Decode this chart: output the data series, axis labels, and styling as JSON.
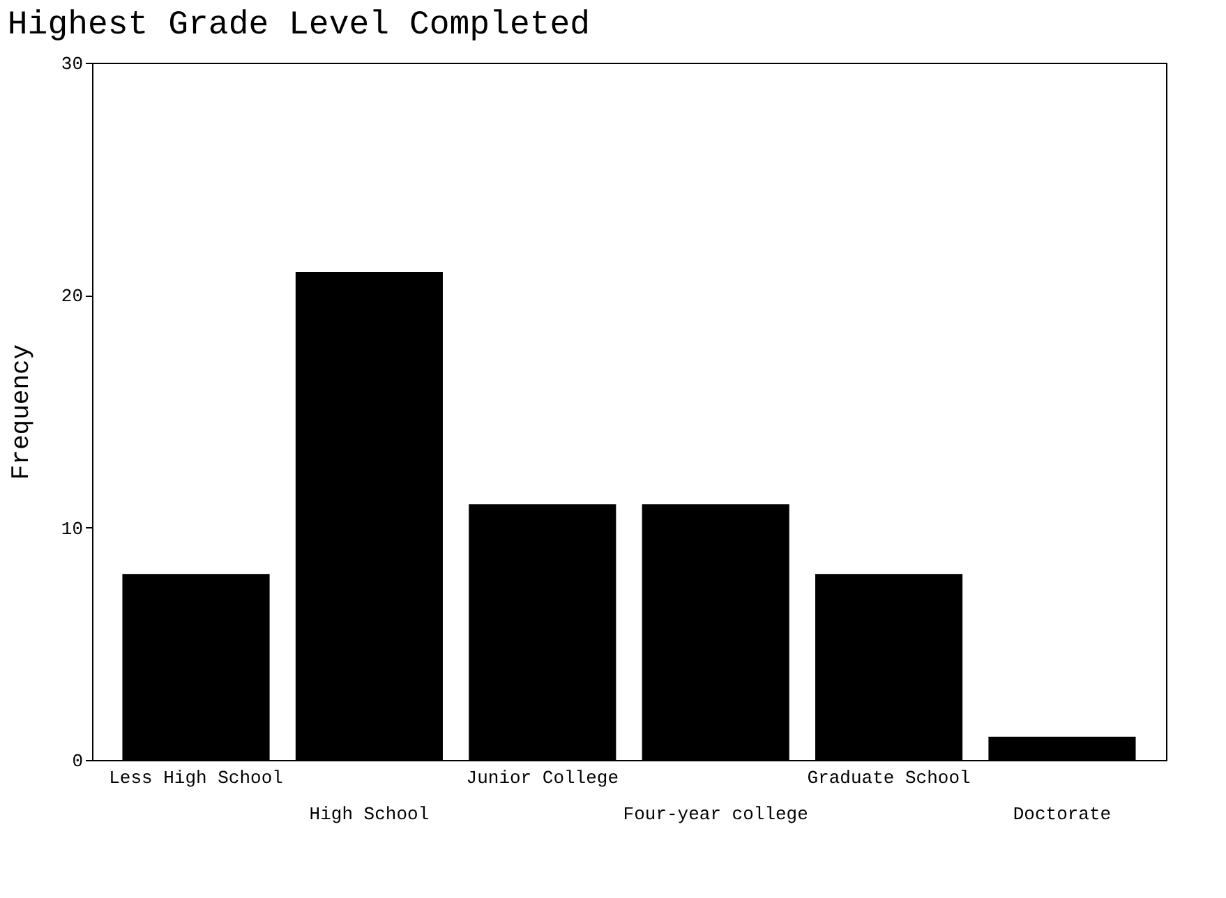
{
  "chart_data": {
    "type": "bar",
    "title": "Highest Grade Level Completed",
    "ylabel": "Frequency",
    "categories": [
      "Less High School",
      "High School",
      "Junior College",
      "Four-year college",
      "Graduate School",
      "Doctorate"
    ],
    "values": [
      8,
      21,
      11,
      11,
      8,
      1
    ],
    "color": "#000000",
    "ylim": [
      0,
      30
    ],
    "yticks": [
      0,
      10,
      20,
      30
    ],
    "grid": false
  }
}
